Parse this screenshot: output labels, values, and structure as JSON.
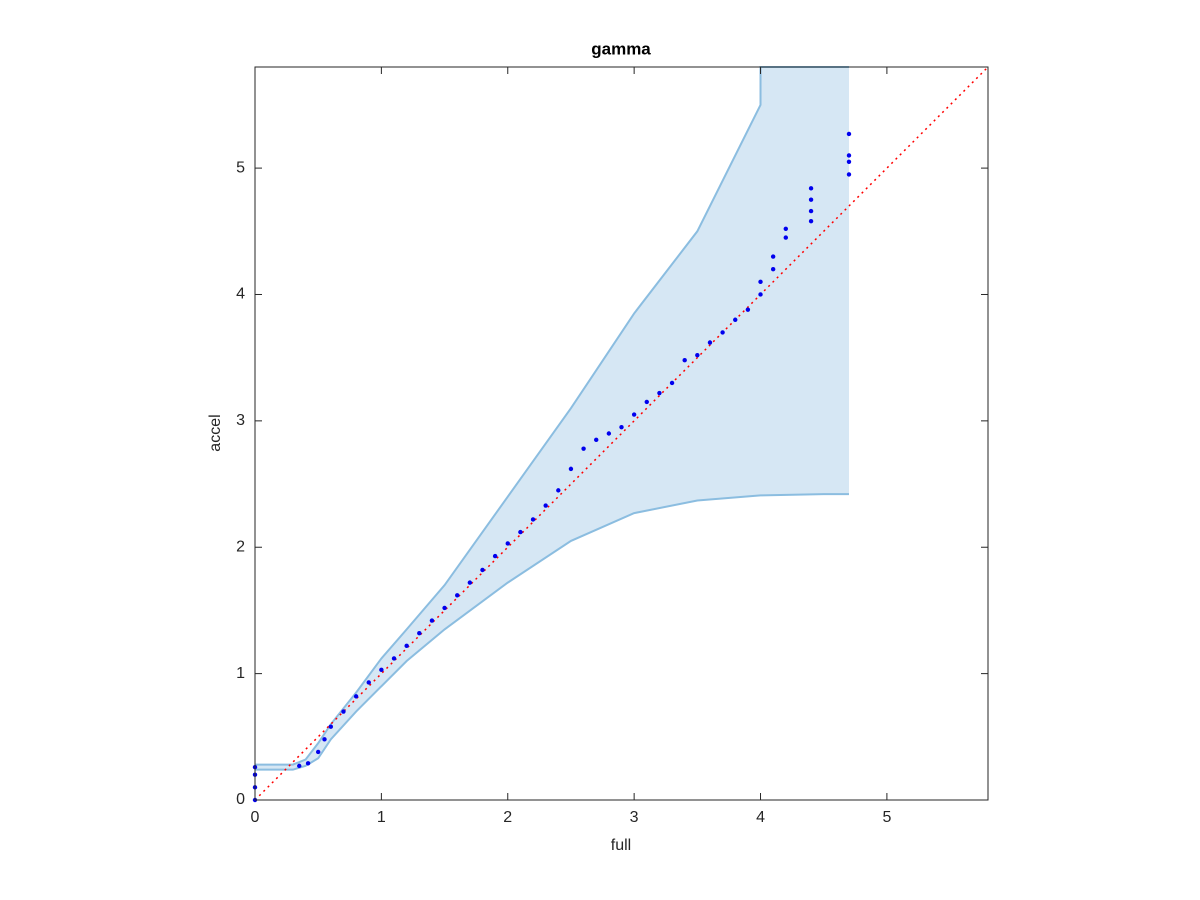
{
  "chart_data": {
    "type": "scatter",
    "title": "gamma",
    "x_label": "full",
    "y_label": "accel",
    "xlim": [
      0,
      5.8
    ],
    "ylim": [
      0,
      5.8
    ],
    "xticks": [
      0,
      1,
      2,
      3,
      4,
      5
    ],
    "yticks": [
      0,
      1,
      2,
      3,
      4,
      5
    ],
    "band": {
      "color": "#d6e7f4",
      "edge_color": "#8bbde0",
      "x": [
        0,
        0.3,
        0.4,
        0.5,
        0.6,
        0.8,
        1.0,
        1.2,
        1.5,
        2.0,
        2.5,
        3.0,
        3.5,
        4.0,
        4.0,
        4.5,
        4.7
      ],
      "upper": [
        0.28,
        0.28,
        0.32,
        0.45,
        0.6,
        0.85,
        1.12,
        1.35,
        1.7,
        2.4,
        3.1,
        3.85,
        4.5,
        5.5,
        5.8,
        5.8,
        5.8
      ],
      "lower": [
        0.24,
        0.24,
        0.27,
        0.33,
        0.48,
        0.7,
        0.9,
        1.1,
        1.35,
        1.72,
        2.05,
        2.27,
        2.37,
        2.41,
        2.41,
        2.42,
        2.42
      ]
    },
    "reference_line": {
      "color": "#ff0000",
      "x": [
        0,
        5.8
      ],
      "y": [
        0,
        5.8
      ]
    },
    "points": {
      "color": "#0000ee",
      "x": [
        0,
        0,
        0,
        0,
        0.35,
        0.42,
        0.5,
        0.55,
        0.6,
        0.7,
        0.8,
        0.9,
        1.0,
        1.1,
        1.2,
        1.3,
        1.4,
        1.5,
        1.6,
        1.7,
        1.8,
        1.9,
        2.0,
        2.1,
        2.2,
        2.3,
        2.4,
        2.5,
        2.6,
        2.7,
        2.8,
        2.9,
        3.0,
        3.1,
        3.2,
        3.3,
        3.4,
        3.5,
        3.6,
        3.7,
        3.8,
        3.9,
        4.0,
        4.0,
        4.1,
        4.1,
        4.2,
        4.2,
        4.4,
        4.4,
        4.4,
        4.4,
        4.7,
        4.7,
        4.7,
        4.7
      ],
      "y": [
        0,
        0.1,
        0.2,
        0.26,
        0.27,
        0.29,
        0.38,
        0.48,
        0.58,
        0.7,
        0.82,
        0.93,
        1.03,
        1.12,
        1.22,
        1.32,
        1.42,
        1.52,
        1.62,
        1.72,
        1.82,
        1.93,
        2.03,
        2.12,
        2.22,
        2.33,
        2.45,
        2.62,
        2.78,
        2.85,
        2.9,
        2.95,
        3.05,
        3.15,
        3.22,
        3.3,
        3.48,
        3.52,
        3.62,
        3.7,
        3.8,
        3.88,
        4.0,
        4.1,
        4.2,
        4.3,
        4.45,
        4.52,
        4.58,
        4.66,
        4.75,
        4.84,
        4.95,
        5.05,
        5.1,
        5.27
      ]
    }
  }
}
